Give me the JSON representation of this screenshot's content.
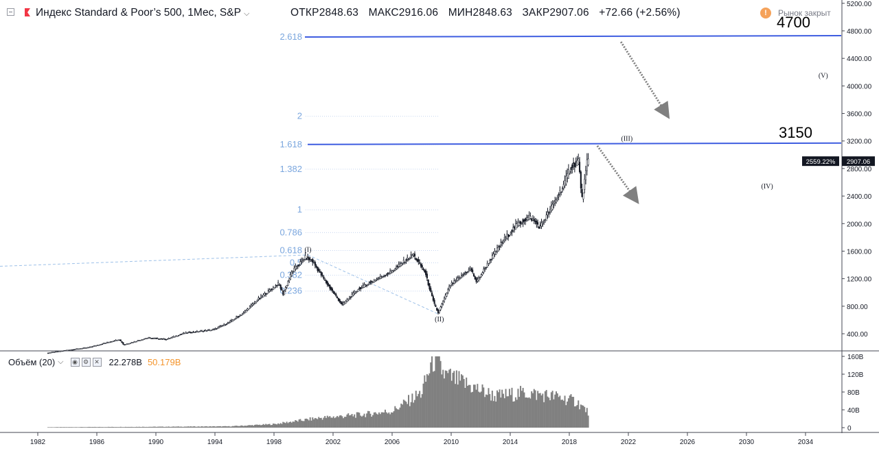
{
  "header": {
    "symbol": "Индекс Standard & Poor’s 500, 1Мес, S&P",
    "open": "ОТКР2848.63",
    "high": "МАКС2916.06",
    "low": "МИН2848.63",
    "close": "ЗАКР2907.06",
    "change": "+72.66 (+2.56%)",
    "market_status": "Рынок закрыт"
  },
  "volume_legend": {
    "label": "Объём (20)",
    "value1": "22.278B",
    "value2": "50.179B"
  },
  "annotations": {
    "target_high": "4700",
    "target_mid": "3150",
    "price_tag_percent": "2559.22%",
    "price_tag_value": "2907.06"
  },
  "colors": {
    "candle": "#131722",
    "fib_text": "#7aa6de",
    "trend_line": "#3d5ce0",
    "volume": "#808080",
    "arrow": "#808080"
  },
  "chart_data": {
    "type": "candlestick",
    "title": "Индекс Standard & Poor’s 500, 1Мес, S&P",
    "x_ticks": [
      "1982",
      "1986",
      "1990",
      "1994",
      "1998",
      "2002",
      "2006",
      "2010",
      "2014",
      "2018",
      "2022",
      "2026",
      "2030",
      "2034"
    ],
    "y_ticks": [
      "400.00",
      "800.00",
      "1200.00",
      "1600.00",
      "2000.00",
      "2400.00",
      "2800.00",
      "3200.00",
      "3600.00",
      "4000.00",
      "4400.00",
      "4800.00",
      "5200.00"
    ],
    "ylim": [
      0,
      5200
    ],
    "price_path": [
      [
        1982.7,
        120
      ],
      [
        1984,
        160
      ],
      [
        1985.5,
        200
      ],
      [
        1987.6,
        320
      ],
      [
        1987.9,
        240
      ],
      [
        1989.5,
        340
      ],
      [
        1990.8,
        320
      ],
      [
        1992,
        410
      ],
      [
        1994,
        460
      ],
      [
        1995,
        560
      ],
      [
        1996,
        700
      ],
      [
        1997,
        900
      ],
      [
        1998.4,
        1130
      ],
      [
        1998.7,
        980
      ],
      [
        1999.3,
        1300
      ],
      [
        2000.2,
        1510
      ],
      [
        2000.7,
        1450
      ],
      [
        2001.6,
        1150
      ],
      [
        2002.7,
        820
      ],
      [
        2003.8,
        1050
      ],
      [
        2005,
        1190
      ],
      [
        2006,
        1300
      ],
      [
        2007.5,
        1550
      ],
      [
        2008.3,
        1300
      ],
      [
        2008.9,
        850
      ],
      [
        2009.2,
        700
      ],
      [
        2010,
        1100
      ],
      [
        2011.4,
        1350
      ],
      [
        2011.8,
        1150
      ],
      [
        2012.5,
        1400
      ],
      [
        2013.6,
        1750
      ],
      [
        2014.5,
        1980
      ],
      [
        2015.4,
        2100
      ],
      [
        2016.1,
        1950
      ],
      [
        2016.9,
        2240
      ],
      [
        2017.8,
        2600
      ],
      [
        2018.1,
        2800
      ],
      [
        2018.7,
        2920
      ],
      [
        2018.95,
        2350
      ],
      [
        2019.3,
        2907
      ]
    ],
    "fib_levels": [
      {
        "label": "2.618",
        "value": 4710
      },
      {
        "label": "2",
        "value": 3560
      },
      {
        "label": "1.618",
        "value": 3150
      },
      {
        "label": "1.382",
        "value": 2790
      },
      {
        "label": "1",
        "value": 2200
      },
      {
        "label": "0.786",
        "value": 1870
      },
      {
        "label": "0.618",
        "value": 1610
      },
      {
        "label": "0.5",
        "value": 1430
      },
      {
        "label": "0.382",
        "value": 1250
      },
      {
        "label": "0.236",
        "value": 1020
      }
    ],
    "wave_labels": [
      {
        "label": "(I)",
        "x": 2000.3,
        "y": 1590
      },
      {
        "label": "(II)",
        "x": 2009.2,
        "y": 580
      },
      {
        "label": "(III)",
        "x": 2021.9,
        "y": 3200
      },
      {
        "label": "(IV)",
        "x": 2031.4,
        "y": 2510
      },
      {
        "label": "(V)",
        "x": 2035.2,
        "y": 4120
      }
    ],
    "volume": {
      "y_ticks": [
        "0",
        "40B",
        "80B",
        "120B",
        "160B"
      ],
      "ylim": [
        0,
        160
      ],
      "path": [
        [
          1982.7,
          1
        ],
        [
          1990,
          2
        ],
        [
          1995,
          3
        ],
        [
          1998,
          8
        ],
        [
          2001,
          22
        ],
        [
          2004,
          30
        ],
        [
          2006,
          38
        ],
        [
          2008,
          80
        ],
        [
          2008.8,
          160
        ],
        [
          2009.6,
          120
        ],
        [
          2011,
          100
        ],
        [
          2013,
          72
        ],
        [
          2015,
          80
        ],
        [
          2017,
          72
        ],
        [
          2018.5,
          60
        ],
        [
          2019.3,
          35
        ]
      ]
    }
  }
}
